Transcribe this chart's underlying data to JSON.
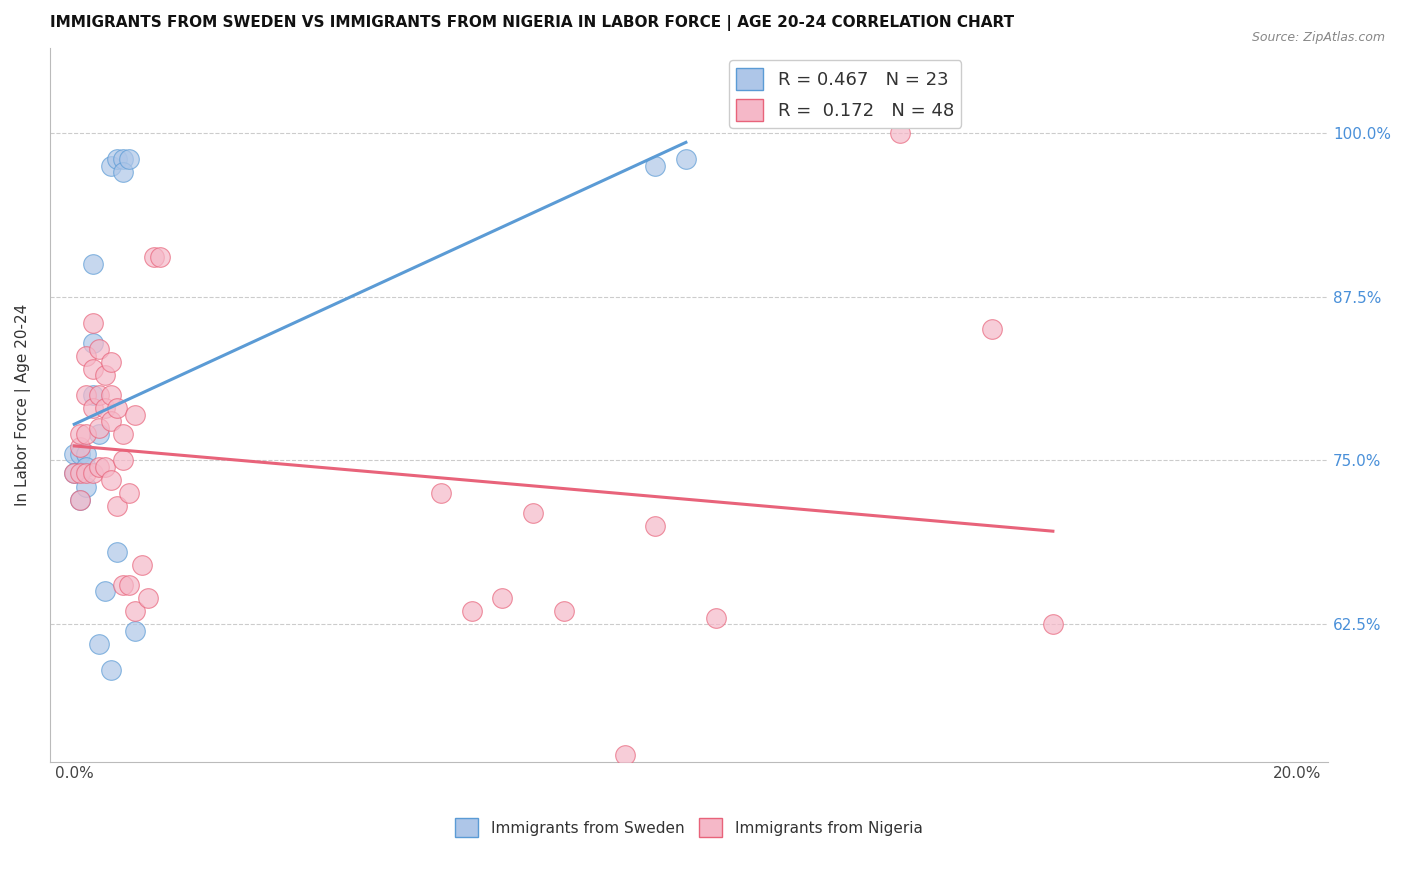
{
  "title": "IMMIGRANTS FROM SWEDEN VS IMMIGRANTS FROM NIGERIA IN LABOR FORCE | AGE 20-24 CORRELATION CHART",
  "source": "Source: ZipAtlas.com",
  "ylabel": "In Labor Force | Age 20-24",
  "sweden_R": 0.467,
  "sweden_N": 23,
  "nigeria_R": 0.172,
  "nigeria_N": 48,
  "sweden_color": "#aec6e8",
  "nigeria_color": "#f5b8c8",
  "sweden_line_color": "#5b9bd5",
  "nigeria_line_color": "#e8637a",
  "legend_label_sweden": "Immigrants from Sweden",
  "legend_label_nigeria": "Immigrants from Nigeria",
  "xlim": [
    -0.004,
    0.205
  ],
  "ylim": [
    0.52,
    1.065
  ],
  "y_ticks": [
    0.625,
    0.75,
    0.875,
    1.0
  ],
  "y_tick_labels": [
    "62.5%",
    "75.0%",
    "87.5%",
    "100.0%"
  ],
  "x_ticks": [
    0.0,
    0.05,
    0.1,
    0.15,
    0.2
  ],
  "x_tick_labels": [
    "0.0%",
    "",
    "",
    "",
    "20.0%"
  ],
  "sweden_x": [
    0.0,
    0.0,
    0.001,
    0.001,
    0.002,
    0.002,
    0.002,
    0.003,
    0.003,
    0.003,
    0.004,
    0.004,
    0.005,
    0.006,
    0.006,
    0.007,
    0.007,
    0.008,
    0.008,
    0.009,
    0.01,
    0.095,
    0.1
  ],
  "sweden_y": [
    0.755,
    0.74,
    0.755,
    0.72,
    0.755,
    0.745,
    0.73,
    0.9,
    0.84,
    0.8,
    0.77,
    0.61,
    0.65,
    0.59,
    0.975,
    0.98,
    0.68,
    0.98,
    0.97,
    0.98,
    0.62,
    0.975,
    0.98
  ],
  "nigeria_x": [
    0.0,
    0.001,
    0.001,
    0.001,
    0.001,
    0.002,
    0.002,
    0.002,
    0.002,
    0.003,
    0.003,
    0.003,
    0.003,
    0.004,
    0.004,
    0.004,
    0.004,
    0.005,
    0.005,
    0.005,
    0.006,
    0.006,
    0.006,
    0.006,
    0.007,
    0.007,
    0.008,
    0.008,
    0.008,
    0.009,
    0.009,
    0.01,
    0.01,
    0.011,
    0.012,
    0.013,
    0.014,
    0.06,
    0.065,
    0.07,
    0.075,
    0.08,
    0.09,
    0.095,
    0.105,
    0.135,
    0.15,
    0.16
  ],
  "nigeria_y": [
    0.74,
    0.76,
    0.74,
    0.77,
    0.72,
    0.83,
    0.8,
    0.77,
    0.74,
    0.855,
    0.82,
    0.79,
    0.74,
    0.835,
    0.8,
    0.775,
    0.745,
    0.815,
    0.79,
    0.745,
    0.825,
    0.8,
    0.78,
    0.735,
    0.79,
    0.715,
    0.77,
    0.75,
    0.655,
    0.655,
    0.725,
    0.785,
    0.635,
    0.67,
    0.645,
    0.905,
    0.905,
    0.725,
    0.635,
    0.645,
    0.71,
    0.635,
    0.525,
    0.7,
    0.63,
    1.0,
    0.85,
    0.625
  ]
}
